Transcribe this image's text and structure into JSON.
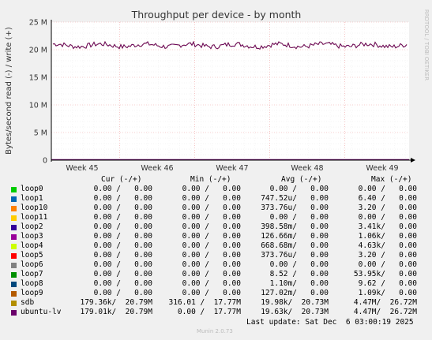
{
  "chart_data": {
    "type": "line",
    "title": "Throughput per device - by month",
    "ylabel": "Bytes/second read (-) / write (+)",
    "ylim": [
      0,
      25000000
    ],
    "yticks": [
      {
        "value": 0,
        "label": "0"
      },
      {
        "value": 5000000,
        "label": "5 M"
      },
      {
        "value": 10000000,
        "label": "10 M"
      },
      {
        "value": 15000000,
        "label": "15 M"
      },
      {
        "value": 20000000,
        "label": "20 M"
      },
      {
        "value": 25000000,
        "label": "25 M"
      }
    ],
    "xtick_labels": [
      "Week 45",
      "Week 46",
      "Week 47",
      "Week 48",
      "Week 49"
    ],
    "grid": true,
    "series": [
      {
        "name": "ubuntu-lv",
        "color": "#660066",
        "approx_value": 20790000
      },
      {
        "name": "sdb",
        "color": "#cc9900",
        "approx_value": 20790000
      }
    ],
    "watermark": "RRDTOOL / TOBI OETIKER"
  },
  "legend": {
    "headers": {
      "cur": "Cur (-/+)",
      "min": "Min (-/+)",
      "avg": "Avg (-/+)",
      "max": "Max (-/+)"
    },
    "rows": [
      {
        "name": "loop0",
        "color": "#00cc00",
        "cur": "0.00 /   0.00",
        "min": "0.00 /   0.00",
        "avg": "0.00 /   0.00",
        "max": "0.00 /   0.00"
      },
      {
        "name": "loop1",
        "color": "#0066b3",
        "cur": "0.00 /   0.00",
        "min": "0.00 /   0.00",
        "avg": "747.52u/   0.00",
        "max": "6.40 /   0.00"
      },
      {
        "name": "loop10",
        "color": "#ff8000",
        "cur": "0.00 /   0.00",
        "min": "0.00 /   0.00",
        "avg": "373.76u/   0.00",
        "max": "3.20 /   0.00"
      },
      {
        "name": "loop11",
        "color": "#ffcc00",
        "cur": "0.00 /   0.00",
        "min": "0.00 /   0.00",
        "avg": "0.00 /   0.00",
        "max": "0.00 /   0.00"
      },
      {
        "name": "loop2",
        "color": "#330099",
        "cur": "0.00 /   0.00",
        "min": "0.00 /   0.00",
        "avg": "398.58m/   0.00",
        "max": "3.41k/   0.00"
      },
      {
        "name": "loop3",
        "color": "#990099",
        "cur": "0.00 /   0.00",
        "min": "0.00 /   0.00",
        "avg": "126.66m/   0.00",
        "max": "1.06k/   0.00"
      },
      {
        "name": "loop4",
        "color": "#ccff00",
        "cur": "0.00 /   0.00",
        "min": "0.00 /   0.00",
        "avg": "668.68m/   0.00",
        "max": "4.63k/   0.00"
      },
      {
        "name": "loop5",
        "color": "#ff0000",
        "cur": "0.00 /   0.00",
        "min": "0.00 /   0.00",
        "avg": "373.76u/   0.00",
        "max": "3.20 /   0.00"
      },
      {
        "name": "loop6",
        "color": "#808080",
        "cur": "0.00 /   0.00",
        "min": "0.00 /   0.00",
        "avg": "0.00 /   0.00",
        "max": "0.00 /   0.00"
      },
      {
        "name": "loop7",
        "color": "#008f00",
        "cur": "0.00 /   0.00",
        "min": "0.00 /   0.00",
        "avg": "8.52 /   0.00",
        "max": "53.95k/   0.00"
      },
      {
        "name": "loop8",
        "color": "#00487d",
        "cur": "0.00 /   0.00",
        "min": "0.00 /   0.00",
        "avg": "1.10m/   0.00",
        "max": "9.62 /   0.00"
      },
      {
        "name": "loop9",
        "color": "#b35a00",
        "cur": "0.00 /   0.00",
        "min": "0.00 /   0.00",
        "avg": "127.02m/   0.00",
        "max": "1.09k/   0.00"
      },
      {
        "name": "sdb",
        "color": "#b38f00",
        "cur": "179.36k/  20.79M",
        "min": "316.01 /  17.77M",
        "avg": "19.98k/  20.73M",
        "max": "4.47M/  26.72M"
      },
      {
        "name": "ubuntu-lv",
        "color": "#6b006b",
        "cur": "179.01k/  20.79M",
        "min": "0.00 /  17.77M",
        "avg": "19.63k/  20.73M",
        "max": "4.47M/  26.72M"
      }
    ]
  },
  "footer": {
    "last_update": "Last update: Sat Dec  6 03:00:19 2025",
    "munin_version": "Munin 2.0.73"
  }
}
